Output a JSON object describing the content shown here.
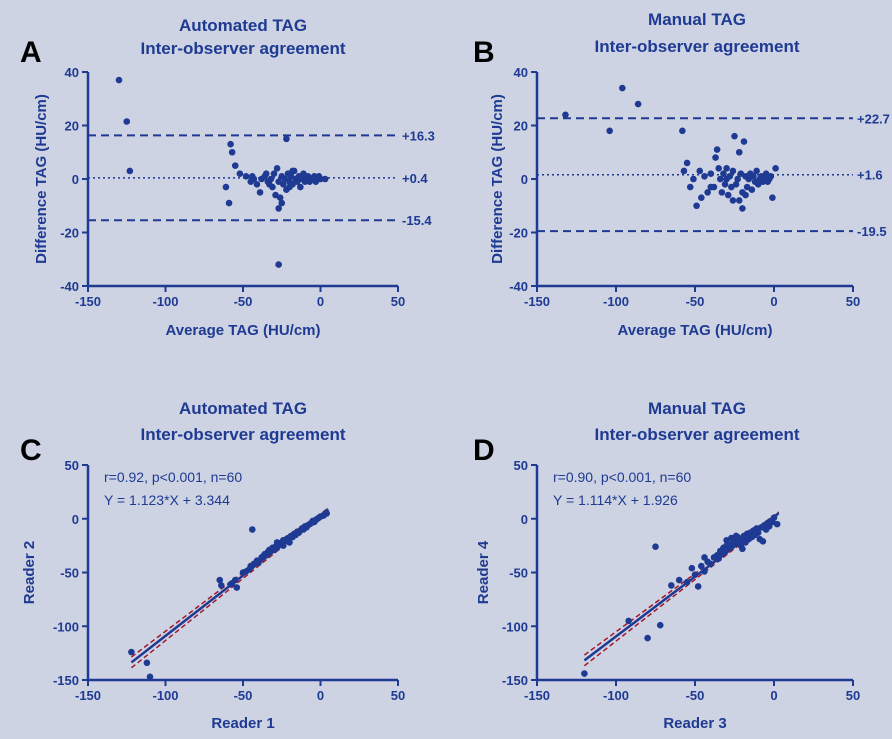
{
  "figure": {
    "background": "#cdd3e2",
    "ink_color": "#1f3a93",
    "dashed_ci_color": "#a3162a"
  },
  "chart_data": [
    {
      "panel": "A",
      "type": "scatter",
      "title_lines": [
        "Automated TAG",
        "Inter-observer agreement"
      ],
      "xlabel": "Average TAG (HU/cm)",
      "ylabel": "Difference TAG (HU/cm)",
      "xlim": [
        -150,
        50
      ],
      "ylim": [
        -40,
        40
      ],
      "xticks": [
        -150,
        -100,
        -50,
        0,
        50
      ],
      "yticks": [
        -40,
        -20,
        0,
        20,
        40
      ],
      "grid": false,
      "reference_lines": [
        {
          "y": 16.3,
          "style": "dashed",
          "label": "+16.3"
        },
        {
          "y": 0.4,
          "style": "dotted",
          "label": "+0.4"
        },
        {
          "y": -15.4,
          "style": "dashed",
          "label": "-15.4"
        }
      ],
      "points": [
        [
          -130,
          37
        ],
        [
          -125,
          21.5
        ],
        [
          -123,
          3
        ],
        [
          -61,
          -3
        ],
        [
          -59,
          -9
        ],
        [
          -58,
          13
        ],
        [
          -57,
          10
        ],
        [
          -55,
          5
        ],
        [
          -52,
          2
        ],
        [
          -48,
          1
        ],
        [
          -45,
          -1
        ],
        [
          -43,
          0
        ],
        [
          -41,
          -2
        ],
        [
          -39,
          -5
        ],
        [
          -38,
          0
        ],
        [
          -36,
          1
        ],
        [
          -34,
          -1
        ],
        [
          -32,
          0
        ],
        [
          -31,
          -3
        ],
        [
          -30,
          2
        ],
        [
          -29,
          -6
        ],
        [
          -28,
          4
        ],
        [
          -27,
          -1
        ],
        [
          -27,
          -11
        ],
        [
          -26,
          -7
        ],
        [
          -25,
          1
        ],
        [
          -24,
          -2
        ],
        [
          -23,
          0
        ],
        [
          -22,
          15
        ],
        [
          -22,
          -4
        ],
        [
          -21,
          2
        ],
        [
          -20,
          -1
        ],
        [
          -19,
          1
        ],
        [
          -18,
          -2
        ],
        [
          -17,
          3
        ],
        [
          -16,
          0
        ],
        [
          -15,
          -1
        ],
        [
          -14,
          1
        ],
        [
          -13,
          -3
        ],
        [
          -12,
          0
        ],
        [
          -11,
          2
        ],
        [
          -10,
          -1
        ],
        [
          -9,
          0
        ],
        [
          -8,
          1
        ],
        [
          -7,
          -1
        ],
        [
          -6,
          0
        ],
        [
          -5,
          0
        ],
        [
          -4,
          1
        ],
        [
          -3,
          -1
        ],
        [
          -2,
          0
        ],
        [
          -1,
          1
        ],
        [
          0,
          0
        ],
        [
          3,
          0
        ],
        [
          -35,
          2
        ],
        [
          -33,
          -2
        ],
        [
          -20,
          -3
        ],
        [
          -18,
          3
        ],
        [
          -25,
          -9
        ],
        [
          -27,
          -32
        ],
        [
          -44,
          1
        ]
      ]
    },
    {
      "panel": "B",
      "type": "scatter",
      "title_lines": [
        "Manual TAG",
        "Inter-observer agreement"
      ],
      "xlabel": "Average TAG (HU/cm)",
      "ylabel": "Difference TAG (HU/cm)",
      "xlim": [
        -150,
        50
      ],
      "ylim": [
        -40,
        40
      ],
      "xticks": [
        -150,
        -100,
        -50,
        0,
        50
      ],
      "yticks": [
        -40,
        -20,
        0,
        20,
        40
      ],
      "grid": false,
      "reference_lines": [
        {
          "y": 22.7,
          "style": "dashed",
          "label": "+22.7"
        },
        {
          "y": 1.6,
          "style": "dotted",
          "label": "+1.6"
        },
        {
          "y": -19.5,
          "style": "dashed",
          "label": "-19.5"
        }
      ],
      "points": [
        [
          -132,
          24
        ],
        [
          -104,
          18
        ],
        [
          -96,
          34
        ],
        [
          -86,
          28
        ],
        [
          -58,
          18
        ],
        [
          -57,
          3
        ],
        [
          -55,
          6
        ],
        [
          -53,
          -3
        ],
        [
          -51,
          0
        ],
        [
          -49,
          -10
        ],
        [
          -47,
          3
        ],
        [
          -46,
          -7
        ],
        [
          -44,
          1
        ],
        [
          -42,
          -5
        ],
        [
          -40,
          2
        ],
        [
          -38,
          -3
        ],
        [
          -37,
          8
        ],
        [
          -36,
          11
        ],
        [
          -35,
          4
        ],
        [
          -34,
          0
        ],
        [
          -33,
          -5
        ],
        [
          -32,
          2
        ],
        [
          -31,
          -2
        ],
        [
          -30,
          0
        ],
        [
          -29,
          -6
        ],
        [
          -28,
          1
        ],
        [
          -27,
          -3
        ],
        [
          -26,
          3
        ],
        [
          -25,
          16
        ],
        [
          -24,
          -2
        ],
        [
          -23,
          0
        ],
        [
          -22,
          -8
        ],
        [
          -21,
          2
        ],
        [
          -20,
          -5
        ],
        [
          -19,
          14
        ],
        [
          -18,
          1
        ],
        [
          -17,
          -3
        ],
        [
          -16,
          0
        ],
        [
          -15,
          2
        ],
        [
          -14,
          -4
        ],
        [
          -13,
          1
        ],
        [
          -12,
          -1
        ],
        [
          -11,
          3
        ],
        [
          -10,
          -2
        ],
        [
          -9,
          0
        ],
        [
          -8,
          1
        ],
        [
          -7,
          -1
        ],
        [
          -6,
          0
        ],
        [
          -5,
          2
        ],
        [
          -4,
          -1
        ],
        [
          -3,
          0
        ],
        [
          -2,
          1
        ],
        [
          -1,
          -7
        ],
        [
          1,
          4
        ],
        [
          -20,
          -11
        ],
        [
          -26,
          -8
        ],
        [
          -30,
          4
        ],
        [
          -40,
          -3
        ],
        [
          -22,
          10
        ],
        [
          -18,
          -6
        ]
      ]
    },
    {
      "panel": "C",
      "type": "scatter",
      "title_lines": [
        "Automated TAG",
        "Inter-observer agreement"
      ],
      "xlabel": "Reader 1",
      "ylabel": "Reader 2",
      "xlim": [
        -150,
        50
      ],
      "ylim": [
        -150,
        50
      ],
      "xticks": [
        -150,
        -100,
        -50,
        0,
        50
      ],
      "yticks": [
        -150,
        -100,
        -50,
        0,
        50
      ],
      "grid": false,
      "annotations": [
        "r=0.92, p<0.001, n=60",
        "Y = 1.123*X + 3.344"
      ],
      "regression": {
        "slope": 1.123,
        "intercept": 3.344,
        "x_range": [
          -122,
          5
        ]
      },
      "points": [
        [
          -122,
          -124
        ],
        [
          -112,
          -134
        ],
        [
          -110,
          -147
        ],
        [
          -65,
          -57
        ],
        [
          -64,
          -62
        ],
        [
          -58,
          -61
        ],
        [
          -57,
          -60
        ],
        [
          -55,
          -57
        ],
        [
          -54,
          -64
        ],
        [
          -50,
          -50
        ],
        [
          -48,
          -49
        ],
        [
          -46,
          -47
        ],
        [
          -45,
          -44
        ],
        [
          -44,
          -10
        ],
        [
          -43,
          -42
        ],
        [
          -41,
          -39
        ],
        [
          -40,
          -41
        ],
        [
          -38,
          -36
        ],
        [
          -37,
          -35
        ],
        [
          -36,
          -33
        ],
        [
          -35,
          -34
        ],
        [
          -34,
          -31
        ],
        [
          -33,
          -29
        ],
        [
          -32,
          -30
        ],
        [
          -31,
          -27
        ],
        [
          -30,
          -29
        ],
        [
          -29,
          -26
        ],
        [
          -28,
          -27
        ],
        [
          -27,
          -23
        ],
        [
          -26,
          -24
        ],
        [
          -25,
          -22
        ],
        [
          -24,
          -20
        ],
        [
          -23,
          -21
        ],
        [
          -22,
          -19
        ],
        [
          -21,
          -18
        ],
        [
          -20,
          -22
        ],
        [
          -19,
          -16
        ],
        [
          -18,
          -17
        ],
        [
          -17,
          -14
        ],
        [
          -16,
          -15
        ],
        [
          -15,
          -12
        ],
        [
          -14,
          -13
        ],
        [
          -13,
          -11
        ],
        [
          -12,
          -9
        ],
        [
          -11,
          -10
        ],
        [
          -10,
          -7
        ],
        [
          -9,
          -8
        ],
        [
          -8,
          -6
        ],
        [
          -7,
          -5
        ],
        [
          -6,
          -4
        ],
        [
          -5,
          -2
        ],
        [
          -4,
          -3
        ],
        [
          -3,
          -1
        ],
        [
          -2,
          0
        ],
        [
          -1,
          1
        ],
        [
          0,
          2
        ],
        [
          2,
          3
        ],
        [
          4,
          5
        ],
        [
          -28,
          -22
        ],
        [
          -24,
          -25
        ]
      ]
    },
    {
      "panel": "D",
      "type": "scatter",
      "title_lines": [
        "Manual TAG",
        "Inter-observer agreement"
      ],
      "xlabel": "Reader 3",
      "ylabel": "Reader 4",
      "xlim": [
        -150,
        50
      ],
      "ylim": [
        -150,
        50
      ],
      "xticks": [
        -150,
        -100,
        -50,
        0,
        50
      ],
      "yticks": [
        -150,
        -100,
        -50,
        0,
        50
      ],
      "grid": false,
      "annotations": [
        "r=0.90, p<0.001, n=60",
        "Y = 1.114*X + 1.926"
      ],
      "regression": {
        "slope": 1.114,
        "intercept": 1.926,
        "x_range": [
          -120,
          3
        ]
      },
      "points": [
        [
          -120,
          -144
        ],
        [
          -92,
          -95
        ],
        [
          -80,
          -111
        ],
        [
          -75,
          -26
        ],
        [
          -72,
          -99
        ],
        [
          -65,
          -62
        ],
        [
          -60,
          -57
        ],
        [
          -55,
          -59
        ],
        [
          -52,
          -46
        ],
        [
          -50,
          -52
        ],
        [
          -48,
          -63
        ],
        [
          -46,
          -44
        ],
        [
          -44,
          -49
        ],
        [
          -42,
          -40
        ],
        [
          -40,
          -42
        ],
        [
          -38,
          -36
        ],
        [
          -36,
          -34
        ],
        [
          -35,
          -37
        ],
        [
          -34,
          -30
        ],
        [
          -33,
          -33
        ],
        [
          -32,
          -27
        ],
        [
          -31,
          -31
        ],
        [
          -30,
          -25
        ],
        [
          -29,
          -28
        ],
        [
          -28,
          -24
        ],
        [
          -27,
          -26
        ],
        [
          -26,
          -19
        ],
        [
          -25,
          -23
        ],
        [
          -24,
          -21
        ],
        [
          -23,
          -17
        ],
        [
          -22,
          -20
        ],
        [
          -21,
          -25
        ],
        [
          -20,
          -18
        ],
        [
          -19,
          -16
        ],
        [
          -18,
          -22
        ],
        [
          -17,
          -14
        ],
        [
          -16,
          -19
        ],
        [
          -15,
          -13
        ],
        [
          -14,
          -17
        ],
        [
          -13,
          -11
        ],
        [
          -12,
          -15
        ],
        [
          -11,
          -9
        ],
        [
          -10,
          -13
        ],
        [
          -9,
          -19
        ],
        [
          -8,
          -8
        ],
        [
          -7,
          -21
        ],
        [
          -6,
          -6
        ],
        [
          -5,
          -10
        ],
        [
          -4,
          -4
        ],
        [
          -3,
          -7
        ],
        [
          -2,
          -2
        ],
        [
          -1,
          -3
        ],
        [
          0,
          1
        ],
        [
          2,
          -5
        ],
        [
          -30,
          -20
        ],
        [
          -27,
          -18
        ],
        [
          -20,
          -28
        ],
        [
          -17,
          -15
        ],
        [
          -44,
          -36
        ],
        [
          -24,
          -16
        ]
      ]
    }
  ]
}
